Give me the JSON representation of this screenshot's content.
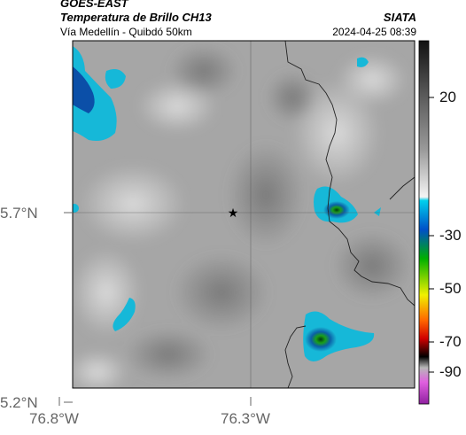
{
  "header": {
    "satellite": "GOES-EAST",
    "product": "Temperatura de Brillo CH13",
    "organization": "SIATA",
    "region": "Vía Medellín - Quibdó 50km",
    "timestamp": "2024-04-25 08:39"
  },
  "map": {
    "lat_ticks": [
      "5.7°N",
      "5.2°N"
    ],
    "lon_ticks": [
      "76.8°W",
      "76.3°W"
    ],
    "marker": "star-marker",
    "crosshair": true
  },
  "colorbar": {
    "labels": [
      "20",
      "-30",
      "-50",
      "-70",
      "-90"
    ],
    "colors": {
      "warm_top": "#111111",
      "gray_mid": "#8c8c8c",
      "gray_light": "#ffffff",
      "cyan": "#00c8e8",
      "blue": "#0040c0",
      "green": "#00b400",
      "yellow": "#f0f000",
      "red": "#e00000",
      "black": "#000000",
      "magenta": "#c000c0"
    }
  }
}
